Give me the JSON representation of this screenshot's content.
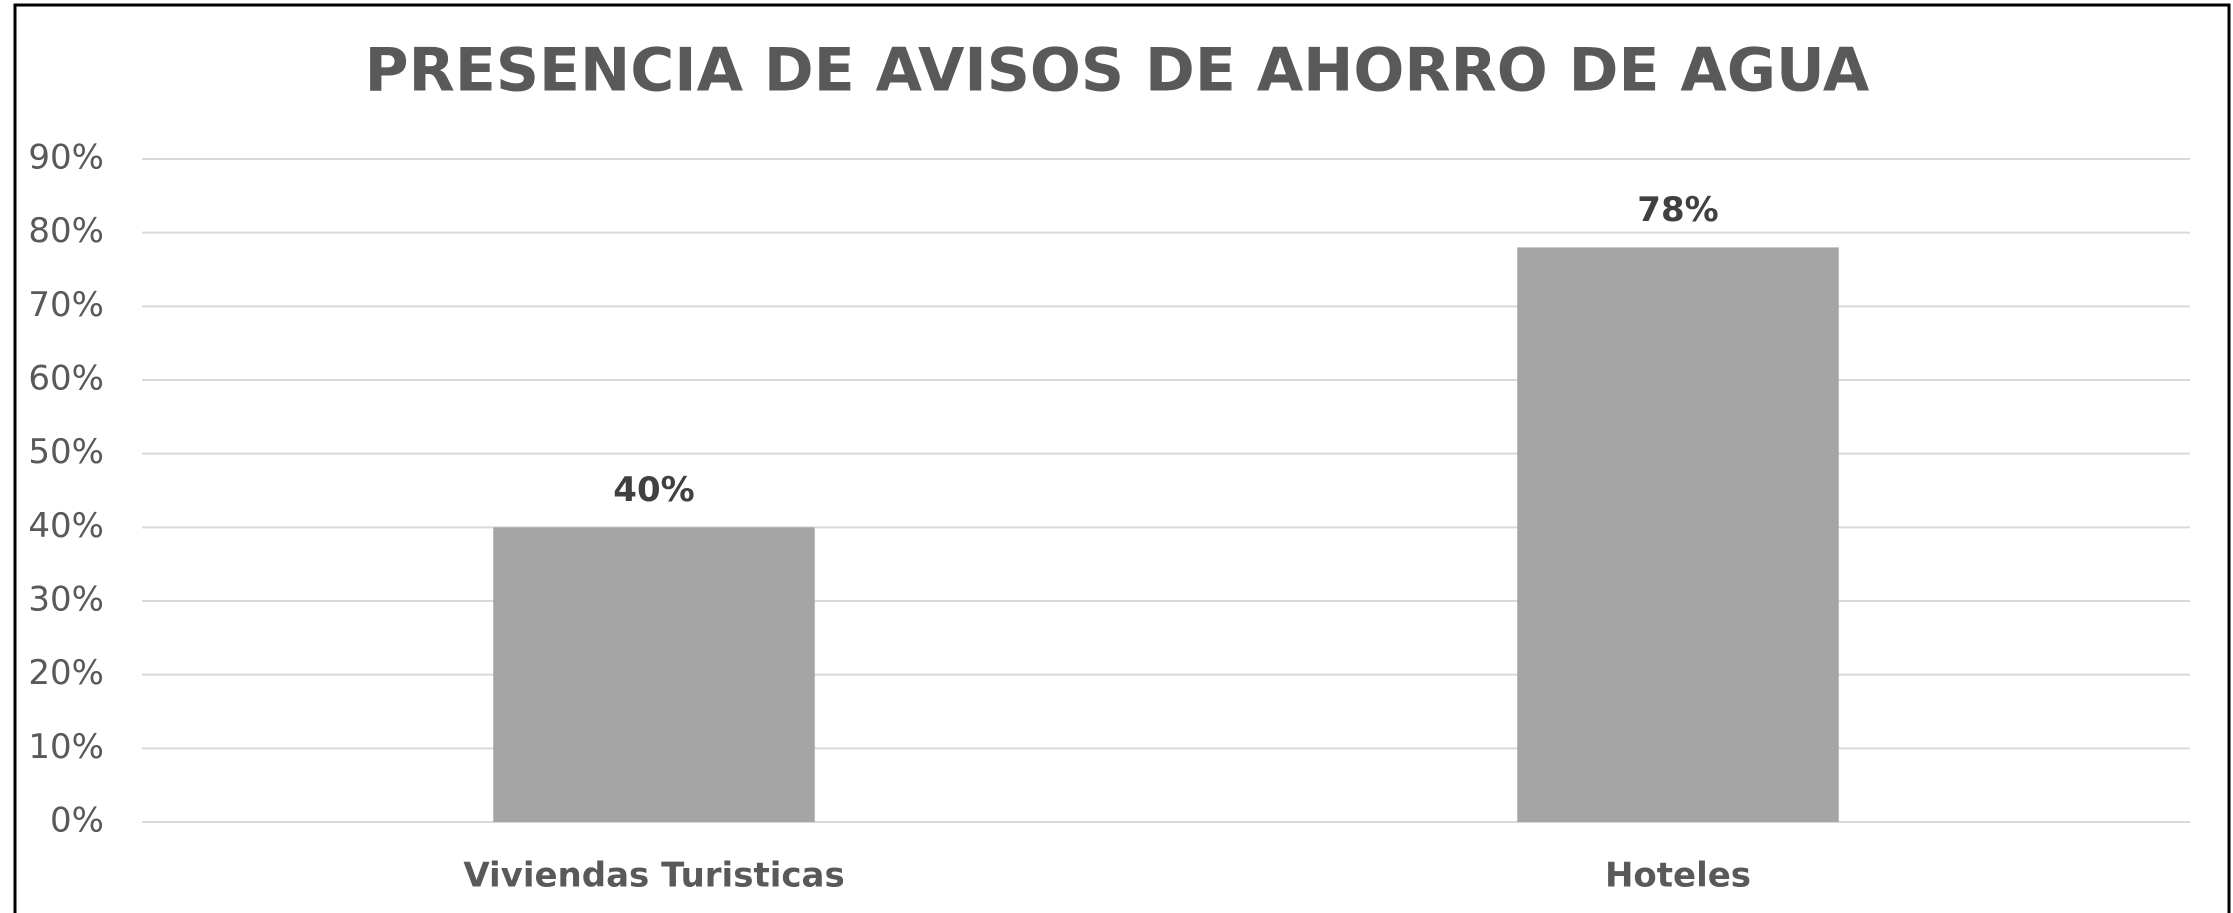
{
  "chart_data": {
    "type": "bar",
    "title": "PRESENCIA DE AVISOS DE AHORRO DE AGUA",
    "categories": [
      "Viviendas Turisticas",
      "Hoteles"
    ],
    "values": [
      40,
      78
    ],
    "value_labels": [
      "40%",
      "78%"
    ],
    "color": "#a5a5a5",
    "ylim": [
      0,
      90
    ],
    "yticks": [
      {
        "value": 0,
        "label": "0%"
      },
      {
        "value": 10,
        "label": "10%"
      },
      {
        "value": 20,
        "label": "20%"
      },
      {
        "value": 30,
        "label": "30%"
      },
      {
        "value": 40,
        "label": "40%"
      },
      {
        "value": 50,
        "label": "50%"
      },
      {
        "value": 60,
        "label": "60%"
      },
      {
        "value": 70,
        "label": "70%"
      },
      {
        "value": 80,
        "label": "80%"
      },
      {
        "value": 90,
        "label": "90%"
      }
    ],
    "grid": true
  }
}
